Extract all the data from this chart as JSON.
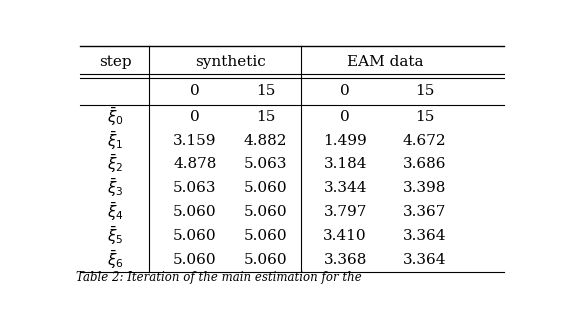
{
  "row_labels": [
    "$\\bar{\\xi}_0$",
    "$\\bar{\\xi}_1$",
    "$\\bar{\\xi}_2$",
    "$\\bar{\\xi}_3$",
    "$\\bar{\\xi}_4$",
    "$\\bar{\\xi}_5$",
    "$\\bar{\\xi}_6$"
  ],
  "table_data": [
    [
      "0",
      "15",
      "0",
      "15"
    ],
    [
      "3.159",
      "4.882",
      "1.499",
      "4.672"
    ],
    [
      "4.878",
      "5.063",
      "3.184",
      "3.686"
    ],
    [
      "5.063",
      "5.060",
      "3.344",
      "3.398"
    ],
    [
      "5.060",
      "5.060",
      "3.797",
      "3.367"
    ],
    [
      "5.060",
      "5.060",
      "3.410",
      "3.364"
    ],
    [
      "5.060",
      "5.060",
      "3.368",
      "3.364"
    ]
  ],
  "caption_partial": "Table 2: Iteration of the main estimation for the",
  "bg_color": "#ffffff",
  "text_color": "#000000",
  "font_size": 11
}
